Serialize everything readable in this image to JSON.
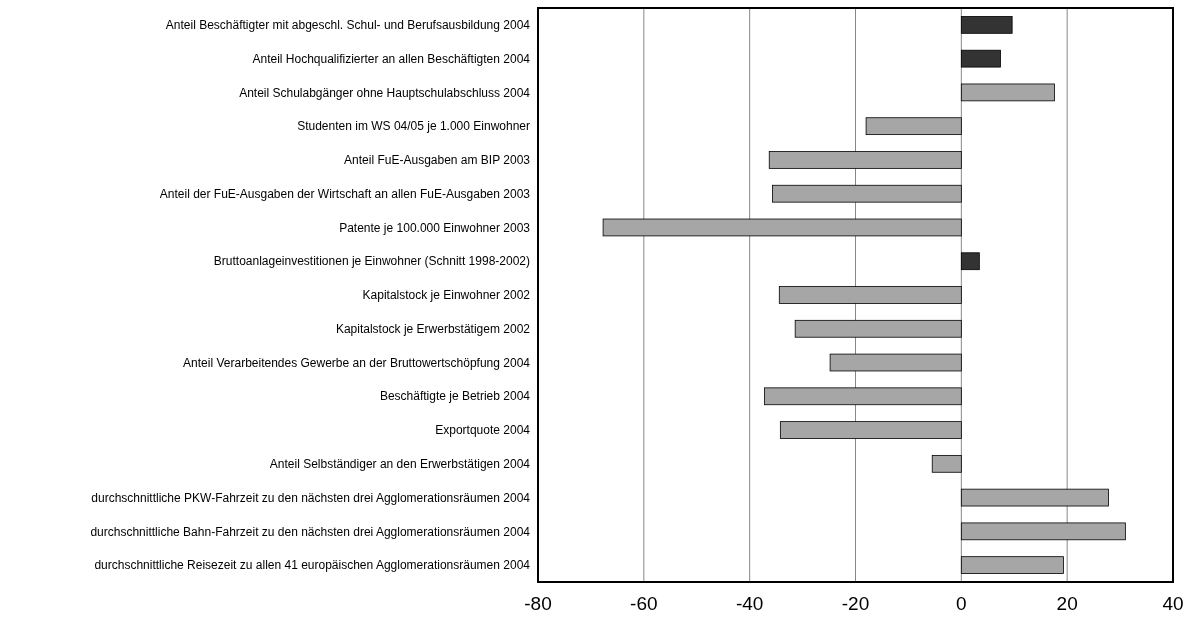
{
  "chart_data": {
    "type": "bar",
    "orientation": "horizontal",
    "categories": [
      "Anteil Beschäftigter mit abgeschl. Schul- und Berufsausbildung 2004",
      "Anteil Hochqualifizierter an allen Beschäftigten 2004",
      "Anteil Schulabgänger ohne Hauptschulabschluss 2004",
      "Studenten im WS 04/05 je 1.000 Einwohner",
      "Anteil FuE-Ausgaben am BIP 2003",
      "Anteil der FuE-Ausgaben der Wirtschaft an allen FuE-Ausgaben 2003",
      "Patente je 100.000 Einwohner 2003",
      "Bruttoanlageinvestitionen je Einwohner (Schnitt 1998-2002)",
      "Kapitalstock je Einwohner 2002",
      "Kapitalstock je Erwerbstätigem 2002",
      "Anteil Verarbeitendes Gewerbe an der Bruttowertschöpfung  2004",
      "Beschäftigte je Betrieb 2004",
      "Exportquote 2004",
      "Anteil Selbständiger an den Erwerbstätigen 2004",
      "durchschnittliche PKW-Fahrzeit zu den nächsten drei Agglomerationsräumen 2004",
      "durchschnittliche Bahn-Fahrzeit zu den nächsten drei Agglomerationsräumen 2004",
      "durchschnittliche Reisezeit zu allen 41 europäischen Agglomerationsräumen 2004"
    ],
    "values": [
      9.6,
      7.4,
      17.6,
      -18,
      -36.3,
      -35.7,
      -67.7,
      3.4,
      -34.4,
      -31.4,
      -24.8,
      -37.2,
      -34.2,
      -5.5,
      27.8,
      31,
      19.3
    ],
    "colors": [
      "#333333",
      "#333333",
      "#a6a6a6",
      "#a6a6a6",
      "#a6a6a6",
      "#a6a6a6",
      "#a6a6a6",
      "#333333",
      "#a6a6a6",
      "#a6a6a6",
      "#a6a6a6",
      "#a6a6a6",
      "#a6a6a6",
      "#a6a6a6",
      "#a6a6a6",
      "#a6a6a6",
      "#a6a6a6"
    ],
    "xlim": [
      -80,
      40
    ],
    "xticks": [
      -80,
      -60,
      -40,
      -20,
      0,
      20,
      40
    ],
    "grid": "x"
  }
}
